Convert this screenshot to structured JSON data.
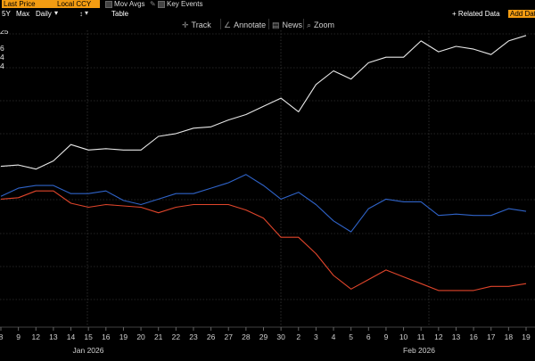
{
  "toolbar": {
    "last_price": "Last Price",
    "currency": "Local CCY",
    "mov_avgs": "Mov Avgs",
    "key_events": "Key Events",
    "period_5y": "5Y",
    "period_max": "Max",
    "frequency": "Daily",
    "table": "Table",
    "related_data": "+ Related Data",
    "add_data": "Add Dat"
  },
  "chart_tools": {
    "track": "Track",
    "annotate": "Annotate",
    "news": "News",
    "zoom": "Zoom"
  },
  "legend_values": [
    "25",
    "6",
    "4",
    "4"
  ],
  "colors": {
    "white_series": "#e8e8e8",
    "blue_series": "#2f63c8",
    "red_series": "#e0452b",
    "grid": "#4a4a4a",
    "accent": "#f39c12"
  },
  "chart_data": {
    "type": "line",
    "x": [
      "8",
      "9",
      "12",
      "13",
      "14",
      "15",
      "16",
      "19",
      "20",
      "21",
      "22",
      "23",
      "26",
      "27",
      "28",
      "29",
      "30",
      "2",
      "3",
      "4",
      "5",
      "6",
      "9",
      "10",
      "11",
      "12",
      "13",
      "16",
      "17",
      "18",
      "19"
    ],
    "month_labels": [
      "Jan 2026",
      "Feb 2026"
    ],
    "ylim": [
      0,
      100
    ],
    "grid": true,
    "series": [
      {
        "color": "#e8e8e8",
        "values": [
          56,
          56.5,
          55,
          58,
          64,
          62,
          62.5,
          62,
          62,
          67,
          68,
          70,
          70.5,
          73,
          75,
          78,
          81,
          76,
          86,
          91,
          88,
          94,
          96,
          96,
          102,
          98,
          100,
          99,
          97,
          102,
          104
        ]
      },
      {
        "color": "#2f63c8",
        "values": [
          45,
          48,
          49,
          49,
          46,
          46,
          47,
          43.5,
          42,
          44,
          46,
          46,
          48,
          50,
          53,
          49,
          44,
          46.5,
          42,
          36,
          32,
          40.5,
          44,
          43,
          43,
          38,
          38.5,
          38,
          38,
          40.5,
          39.5
        ]
      },
      {
        "color": "#e0452b",
        "values": [
          44,
          44.5,
          47,
          47,
          42.5,
          41,
          42,
          41.5,
          41,
          39,
          41,
          42,
          42,
          42,
          40,
          37,
          30,
          30,
          24,
          16,
          11,
          14.5,
          18,
          15.5,
          13,
          10.5,
          10.5,
          10.5,
          12,
          12,
          13
        ]
      }
    ]
  }
}
